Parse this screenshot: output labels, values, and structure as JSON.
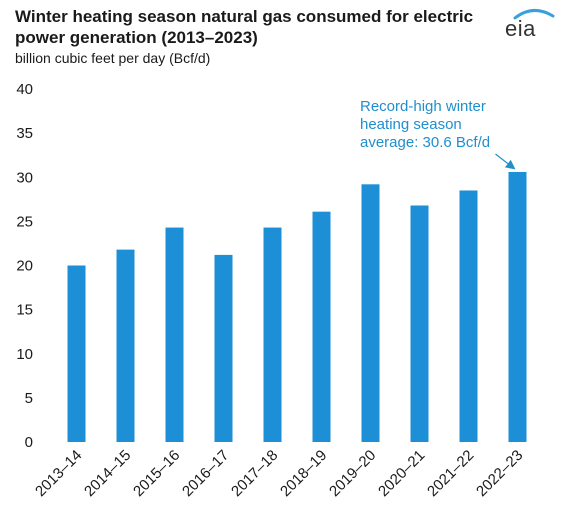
{
  "header": {
    "title": "Winter heating season natural gas consumed for electric power generation (2013–2023)",
    "subtitle": "billion cubic feet per day (Bcf/d)",
    "logo_text": "eia"
  },
  "colors": {
    "bar": "#1d8fd6",
    "text": "#1a1a1a",
    "annotation": "#1f8fce",
    "logo_arc": "#3aa0dc"
  },
  "chart_data": {
    "type": "bar",
    "title": "Winter heating season natural gas consumed for electric power generation (2013–2023)",
    "subtitle": "billion cubic feet per day (Bcf/d)",
    "xlabel": "",
    "ylabel": "",
    "ylim": [
      0,
      40
    ],
    "yticks": [
      0,
      5,
      10,
      15,
      20,
      25,
      30,
      35,
      40
    ],
    "grid": false,
    "categories": [
      "2013–14",
      "2014–15",
      "2015–16",
      "2016–17",
      "2017–18",
      "2018–19",
      "2019–20",
      "2020–21",
      "2021–22",
      "2022–23"
    ],
    "values": [
      20.0,
      21.8,
      24.3,
      21.2,
      24.3,
      26.1,
      29.2,
      26.8,
      28.5,
      30.6
    ],
    "annotation": {
      "lines": [
        "Record-high winter",
        "heating season",
        "average: 30.6 Bcf/d"
      ],
      "target_category": "2022–23"
    }
  }
}
